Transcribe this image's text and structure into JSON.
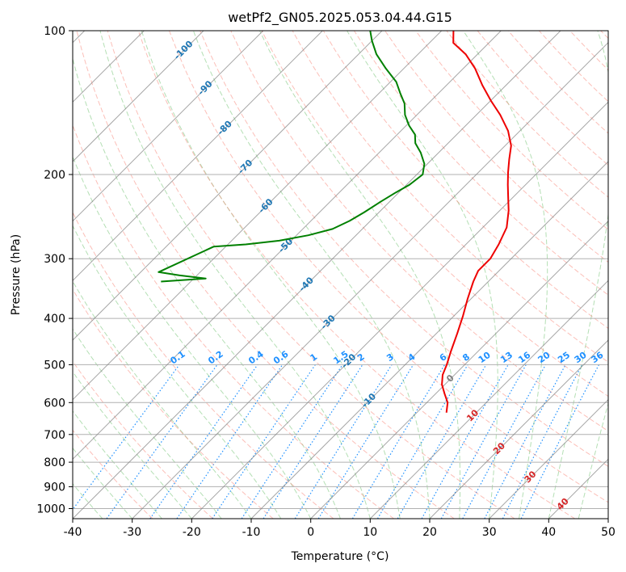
{
  "chart_data": {
    "type": "line",
    "title": "wetPf2_GN05.2025.053.04.44.G15",
    "xlabel": "Temperature (°C)",
    "ylabel": "Pressure (hPa)",
    "xlim": [
      -40,
      50
    ],
    "ylim": [
      1050,
      100
    ],
    "y_scale": "log",
    "grid": true,
    "x_ticks": [
      -40,
      -30,
      -20,
      -10,
      0,
      10,
      20,
      30,
      40,
      50
    ],
    "y_ticks": [
      100,
      200,
      300,
      400,
      500,
      600,
      700,
      800,
      900,
      1000
    ],
    "series": [
      {
        "role": "temperature",
        "color": "#ee0000",
        "points": [
          [
            5.0,
            630
          ],
          [
            3.5,
            600
          ],
          [
            1.5,
            575
          ],
          [
            -0.5,
            550
          ],
          [
            -2.0,
            525
          ],
          [
            -3.0,
            500
          ],
          [
            -4.5,
            470
          ],
          [
            -6.5,
            430
          ],
          [
            -8.5,
            395
          ],
          [
            -10.5,
            365
          ],
          [
            -12.5,
            335
          ],
          [
            -13.5,
            318
          ],
          [
            -13.5,
            300
          ],
          [
            -14.5,
            280
          ],
          [
            -16.0,
            258
          ],
          [
            -18.5,
            238
          ],
          [
            -21.0,
            222
          ],
          [
            -23.0,
            210
          ],
          [
            -25.0,
            198
          ],
          [
            -27.0,
            186
          ],
          [
            -29.0,
            174
          ],
          [
            -32.0,
            162
          ],
          [
            -36.0,
            150
          ],
          [
            -40.0,
            140
          ],
          [
            -44.0,
            130
          ],
          [
            -48.0,
            120
          ],
          [
            -52.0,
            112
          ],
          [
            -56.0,
            106
          ],
          [
            -58.0,
            100
          ]
        ]
      },
      {
        "role": "dewpoint",
        "color": "#008000",
        "points": [
          [
            -65.0,
            335
          ],
          [
            -58.0,
            330
          ],
          [
            -63.0,
            325
          ],
          [
            -67.0,
            320
          ],
          [
            -62.0,
            283
          ],
          [
            -57.0,
            280
          ],
          [
            -52.0,
            275
          ],
          [
            -48.0,
            268
          ],
          [
            -45.0,
            260
          ],
          [
            -43.5,
            250
          ],
          [
            -42.5,
            240
          ],
          [
            -41.5,
            228
          ],
          [
            -40.5,
            218
          ],
          [
            -39.5,
            210
          ],
          [
            -39.0,
            200
          ],
          [
            -40.5,
            190
          ],
          [
            -43.0,
            180
          ],
          [
            -45.5,
            172
          ],
          [
            -47.0,
            165
          ],
          [
            -49.5,
            158
          ],
          [
            -52.0,
            150
          ],
          [
            -54.0,
            142
          ],
          [
            -56.5,
            135
          ],
          [
            -59.0,
            128
          ],
          [
            -63.0,
            120
          ],
          [
            -67.0,
            112
          ],
          [
            -70.0,
            105
          ],
          [
            -72.0,
            100
          ]
        ]
      }
    ],
    "isotherm_labels": [
      {
        "t": -100,
        "p": 110,
        "text": "-100"
      },
      {
        "t": -90,
        "p": 132,
        "text": "-90"
      },
      {
        "t": -80,
        "p": 160,
        "text": "-80"
      },
      {
        "t": -70,
        "p": 193,
        "text": "-70"
      },
      {
        "t": -60,
        "p": 233,
        "text": "-60"
      },
      {
        "t": -50,
        "p": 282,
        "text": "-50"
      },
      {
        "t": -40,
        "p": 340,
        "text": "-40"
      },
      {
        "t": -30,
        "p": 408,
        "text": "-30"
      },
      {
        "t": -20,
        "p": 492,
        "text": "-20"
      },
      {
        "t": -10,
        "p": 595,
        "text": "-10"
      }
    ],
    "mixing_ratio_labels": [
      "0.1",
      "0.2",
      "0.4",
      "0.6",
      "1",
      "1.5",
      "2",
      "3",
      "4",
      "6",
      "8",
      "10",
      "13",
      "16",
      "20",
      "25",
      "30",
      "36"
    ],
    "moist_adiabat_labels": [
      {
        "t": 0,
        "p": 535,
        "text": "0"
      },
      {
        "t": 10,
        "p": 640,
        "text": "10"
      },
      {
        "t": 20,
        "p": 750,
        "text": "20"
      },
      {
        "t": 30,
        "p": 860,
        "text": "30"
      },
      {
        "t": 40,
        "p": 980,
        "text": "40"
      }
    ],
    "colors": {
      "isotherm": "#808080",
      "isotherm_label": "#1f77b4",
      "dry_adiabat": "#fa8072",
      "moist_adiabat": "#6abf69",
      "mixing_ratio": "#1e90ff",
      "moist_label": "#d62728",
      "zero_label": "#808080"
    }
  }
}
